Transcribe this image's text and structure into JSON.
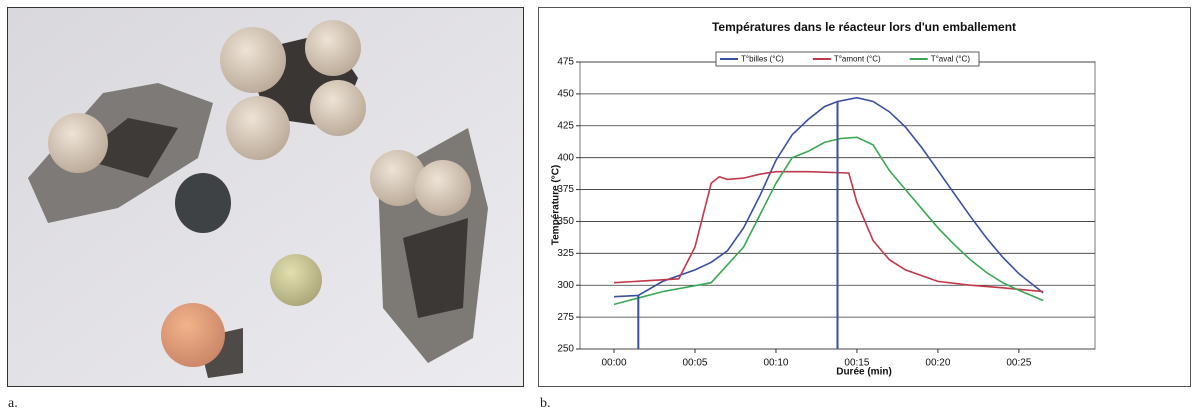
{
  "captions": {
    "a": "a.",
    "b": "b."
  },
  "chart_data": {
    "type": "line",
    "title": "Températures dans le réacteur lors d'un emballement",
    "x_label": "Durée (min)",
    "y_label": "Température (°C)",
    "xlim": [
      -2.1,
      29.7
    ],
    "ylim": [
      250,
      475
    ],
    "xticks": [
      {
        "value": 0,
        "label": "00:00"
      },
      {
        "value": 5,
        "label": "00:05"
      },
      {
        "value": 10,
        "label": "00:10"
      },
      {
        "value": 15,
        "label": "00:15"
      },
      {
        "value": 20,
        "label": "00:20"
      },
      {
        "value": 25,
        "label": "00:25"
      }
    ],
    "yticks": [
      250,
      275,
      300,
      325,
      350,
      375,
      400,
      425,
      450,
      475
    ],
    "grid": true,
    "legend": "top",
    "series": [
      {
        "name": "T°billes (°C)",
        "color": "#3a4fa0",
        "x": [
          0,
          1.5,
          3,
          5,
          6,
          7,
          8,
          9,
          10,
          11,
          12,
          13,
          13.8,
          15,
          16,
          17,
          18,
          19,
          20,
          21,
          22,
          23,
          24,
          25,
          26.5
        ],
        "values": [
          291,
          292,
          303,
          312,
          318,
          327,
          345,
          370,
          398,
          418,
          430,
          440,
          444,
          447,
          444,
          436,
          424,
          408,
          390,
          372,
          354,
          337,
          322,
          309,
          294
        ]
      },
      {
        "name": "T°amont (°C)",
        "color": "#c0394b",
        "x": [
          0,
          4,
          5,
          6,
          6.5,
          7,
          8,
          9,
          10,
          12,
          14.5,
          15,
          16,
          17,
          18,
          20,
          22,
          24,
          26.5
        ],
        "values": [
          302,
          305,
          330,
          380,
          385,
          383,
          384,
          387,
          389,
          389,
          388,
          365,
          335,
          320,
          312,
          303,
          300,
          298,
          295
        ]
      },
      {
        "name": "T°aval (°C)",
        "color": "#3aa855",
        "x": [
          0,
          3,
          6,
          8,
          10,
          11,
          12,
          13,
          14,
          15,
          16,
          17,
          18,
          19,
          20,
          21,
          22,
          23,
          24,
          25,
          26.5
        ],
        "values": [
          285,
          295,
          302,
          330,
          380,
          400,
          405,
          412,
          415,
          416,
          410,
          390,
          375,
          360,
          345,
          332,
          320,
          310,
          302,
          296,
          288
        ]
      }
    ],
    "vlines": {
      "color": "#3a4fa0",
      "x": [
        1.5,
        13.8
      ],
      "y": [
        292,
        444
      ]
    }
  }
}
